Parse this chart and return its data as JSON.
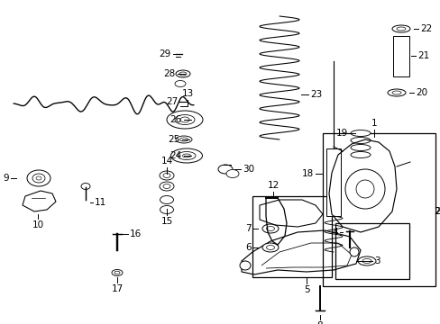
{
  "bg_color": "#ffffff",
  "fig_width": 4.89,
  "fig_height": 3.6,
  "dpi": 100,
  "line_color": "#000000",
  "line_width": 0.7,
  "label_fontsize": 7.5
}
